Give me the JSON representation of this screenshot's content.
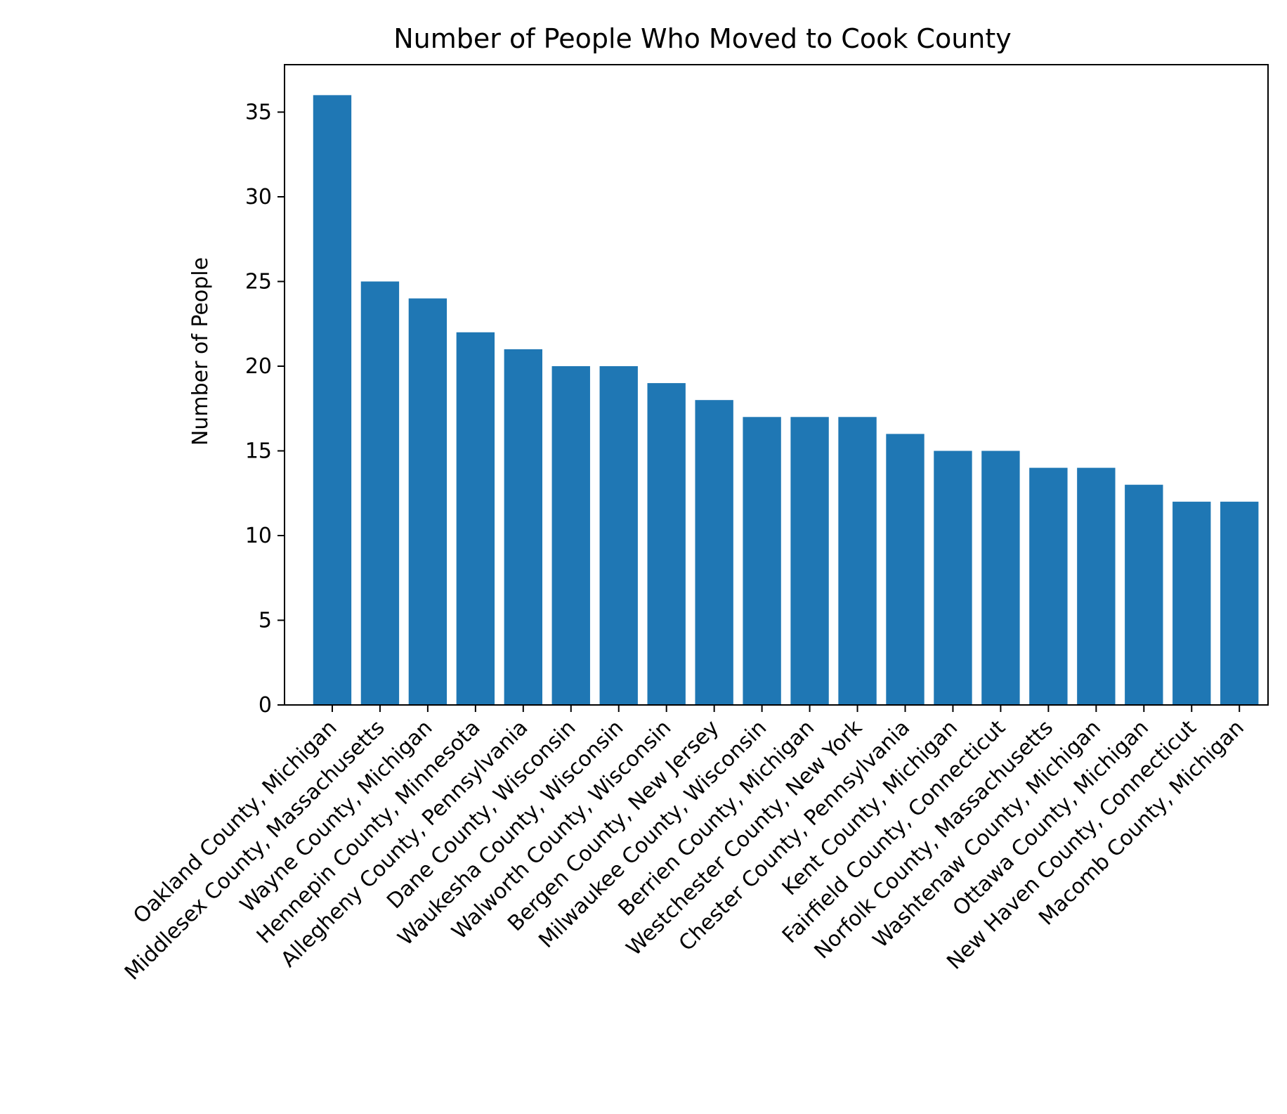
{
  "chart_data": {
    "type": "bar",
    "title": "Number of People Who Moved to Cook County",
    "xlabel": "",
    "ylabel": "Number of People",
    "ylim": [
      0,
      37.8
    ],
    "yticks": [
      0,
      5,
      10,
      15,
      20,
      25,
      30,
      35
    ],
    "grid": false,
    "bar_color": "#1f77b4",
    "categories": [
      "Oakland County, Michigan",
      "Middlesex County, Massachusetts",
      "Wayne County, Michigan",
      "Hennepin County, Minnesota",
      "Allegheny County, Pennsylvania",
      "Dane County, Wisconsin",
      "Waukesha County, Wisconsin",
      "Walworth County, Wisconsin",
      "Bergen County, New Jersey",
      "Milwaukee County, Wisconsin",
      "Berrien County, Michigan",
      "Westchester County, New York",
      "Chester County, Pennsylvania",
      "Kent County, Michigan",
      "Fairfield County, Connecticut",
      "Norfolk County, Massachusetts",
      "Washtenaw County, Michigan",
      "Ottawa County, Michigan",
      "New Haven County, Connecticut",
      "Macomb County, Michigan"
    ],
    "values": [
      36,
      25,
      24,
      22,
      21,
      20,
      20,
      19,
      18,
      17,
      17,
      17,
      16,
      15,
      15,
      14,
      14,
      13,
      12,
      12
    ]
  }
}
